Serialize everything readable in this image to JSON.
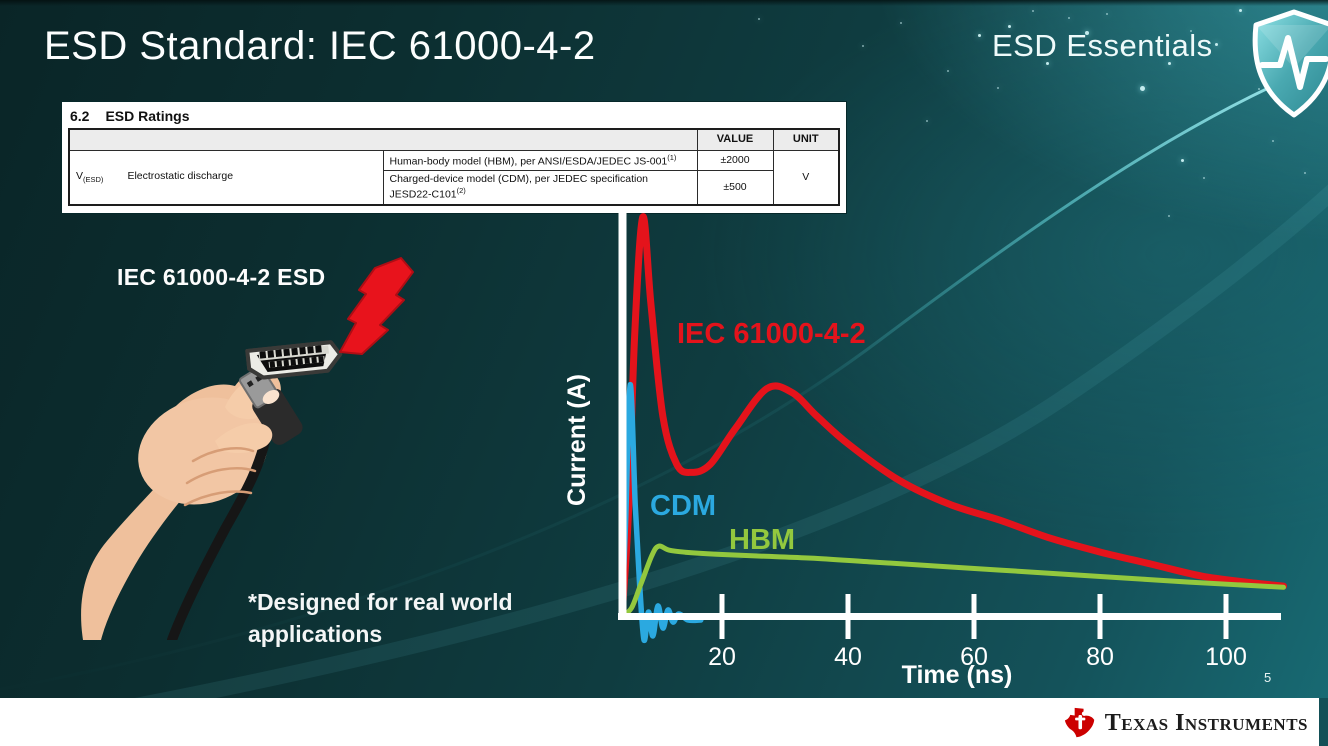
{
  "slide": {
    "title": "ESD Standard: IEC 61000-4-2",
    "page_number": "5",
    "series_badge": {
      "label": "ESD Essentials"
    }
  },
  "ratings_table": {
    "section_number": "6.2",
    "section_title": "ESD Ratings",
    "col_value": "VALUE",
    "col_unit": "UNIT",
    "param_symbol": "V",
    "param_sub": "(ESD)",
    "param_name": "Electrostatic discharge",
    "row1": {
      "desc": "Human-body model (HBM), per ANSI/ESDA/JEDEC JS-001",
      "sup": "(1)",
      "value": "±2000"
    },
    "row2": {
      "desc": "Charged-device model (CDM), per JEDEC specification JESD22-C101",
      "sup": "(2)",
      "value": "±500"
    },
    "unit": "V"
  },
  "illustration": {
    "caption": "IEC 61000-4-2 ESD",
    "note_line1": "*Designed for real world",
    "note_line2": "applications"
  },
  "footer": {
    "brand": "Texas Instruments"
  },
  "chart_data": {
    "type": "line",
    "title": "",
    "xlabel": "Time (ns)",
    "ylabel": "Current (A)",
    "x_ticks": [
      20,
      40,
      60,
      80,
      100
    ],
    "xlim": [
      0,
      110
    ],
    "grid": false,
    "legend_position": "inline-labels",
    "series": [
      {
        "name": "IEC 61000-4-2",
        "color": "#e4131b",
        "x": [
          0,
          1,
          2,
          3.3,
          4.6,
          6.5,
          8.7,
          11,
          14,
          18,
          23,
          27,
          31,
          36,
          44,
          52,
          60,
          68,
          76,
          84,
          92,
          99,
          105
        ],
        "y": [
          0,
          25,
          70,
          100,
          78,
          50,
          38,
          36,
          38,
          47,
          57,
          56,
          50,
          43,
          34,
          28,
          24,
          19.5,
          16,
          13,
          10,
          8.5,
          7.5
        ]
      },
      {
        "name": "CDM",
        "color": "#2ba9e0",
        "x": [
          0,
          0.6,
          1.3,
          2.1,
          2.8,
          3.5,
          4.2,
          4.9,
          5.7,
          6.5,
          7.3,
          8.1,
          9,
          10.5,
          12.5
        ],
        "y": [
          0,
          25,
          58,
          28,
          8,
          -6,
          1,
          -5,
          2.5,
          -3,
          1.5,
          -1.5,
          0.5,
          -1,
          -1
        ]
      },
      {
        "name": "HBM",
        "color": "#93c83e",
        "x": [
          0,
          1.5,
          3,
          4.7,
          5.8,
          7.5,
          10,
          15,
          22,
          30,
          40,
          50,
          60,
          70,
          80,
          90,
          98,
          105
        ],
        "y": [
          0,
          2,
          8,
          15,
          17.5,
          16.5,
          16,
          15.5,
          15,
          14.5,
          13.5,
          12.5,
          11.5,
          10.5,
          9.5,
          8.5,
          7.8,
          7.2
        ]
      }
    ]
  }
}
